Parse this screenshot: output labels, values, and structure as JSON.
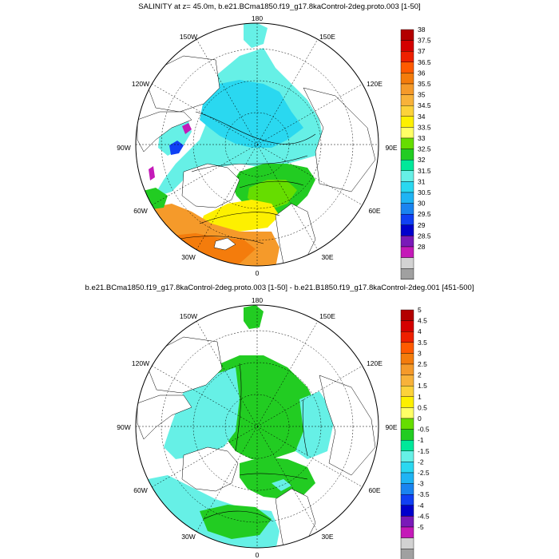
{
  "panels": [
    {
      "title": "SALINITY at z=  45.0m, b.e21.BCma1850.f19_g17.8kaControl-2deg.proto.003 [1-50]",
      "colorbar": {
        "labels": [
          "38",
          "37.5",
          "37",
          "36.5",
          "36",
          "35.5",
          "35",
          "34.5",
          "34",
          "33.5",
          "33",
          "32.5",
          "32",
          "31.5",
          "31",
          "30.5",
          "30",
          "29.5",
          "29",
          "28.5",
          "28"
        ],
        "colors": [
          "#b30000",
          "#d40000",
          "#ee2000",
          "#ff5a00",
          "#f47c0c",
          "#f59a2a",
          "#f8b23a",
          "#fcd23a",
          "#fdf000",
          "#ffff66",
          "#66dd00",
          "#22cc22",
          "#00e89a",
          "#66f0e6",
          "#2ad8f0",
          "#1fb4f4",
          "#1a84f0",
          "#1040f4",
          "#0000cc",
          "#7a1ab8",
          "#c41ab8",
          "#d2d2d2",
          "#a0a0a0",
          "#707070"
        ]
      }
    },
    {
      "title": "b.e21.BCma1850.f19_g17.8kaControl-2deg.proto.003 [1-50] - b.e21.B1850.f19_g17.8kaControl-2deg.001 [451-500]",
      "colorbar": {
        "labels": [
          "5",
          "4.5",
          "4",
          "3.5",
          "3",
          "2.5",
          "2",
          "1.5",
          "1",
          "0.5",
          "0",
          "-0.5",
          "-1",
          "-1.5",
          "-2",
          "-2.5",
          "-3",
          "-3.5",
          "-4",
          "-4.5",
          "-5"
        ],
        "colors": [
          "#b30000",
          "#d40000",
          "#ee2000",
          "#ff5a00",
          "#f47c0c",
          "#f59a2a",
          "#f8b23a",
          "#fcd23a",
          "#fdf000",
          "#ffff66",
          "#66dd00",
          "#22cc22",
          "#00e89a",
          "#66f0e6",
          "#2ad8f0",
          "#1fb4f4",
          "#1a84f0",
          "#1040f4",
          "#0000cc",
          "#7a1ab8",
          "#c41ab8",
          "#d2d2d2",
          "#a0a0a0",
          "#707070"
        ]
      }
    }
  ],
  "map": {
    "lon_labels": {
      "top": "180",
      "bottom": "0",
      "left": "90W",
      "right": "90E",
      "upper_left_1": "150W",
      "upper_left_2": "120W",
      "upper_right_1": "150E",
      "upper_right_2": "120E",
      "lower_left_1": "60W",
      "lower_left_2": "30W",
      "lower_right_1": "60E",
      "lower_right_2": "30E"
    },
    "colors": {
      "ocean_low": "#66f0e6",
      "ocean_mid": "#2ad8f0",
      "ocean_deep": "#1fb4f4",
      "green": "#22cc22",
      "lightgreen": "#66dd00",
      "yellow": "#fdf000",
      "orange": "#f59a2a",
      "darkorange": "#f47c0c",
      "blue": "#1040f4",
      "purple": "#c41ab8",
      "land": "#ffffff",
      "line": "#000000"
    }
  }
}
